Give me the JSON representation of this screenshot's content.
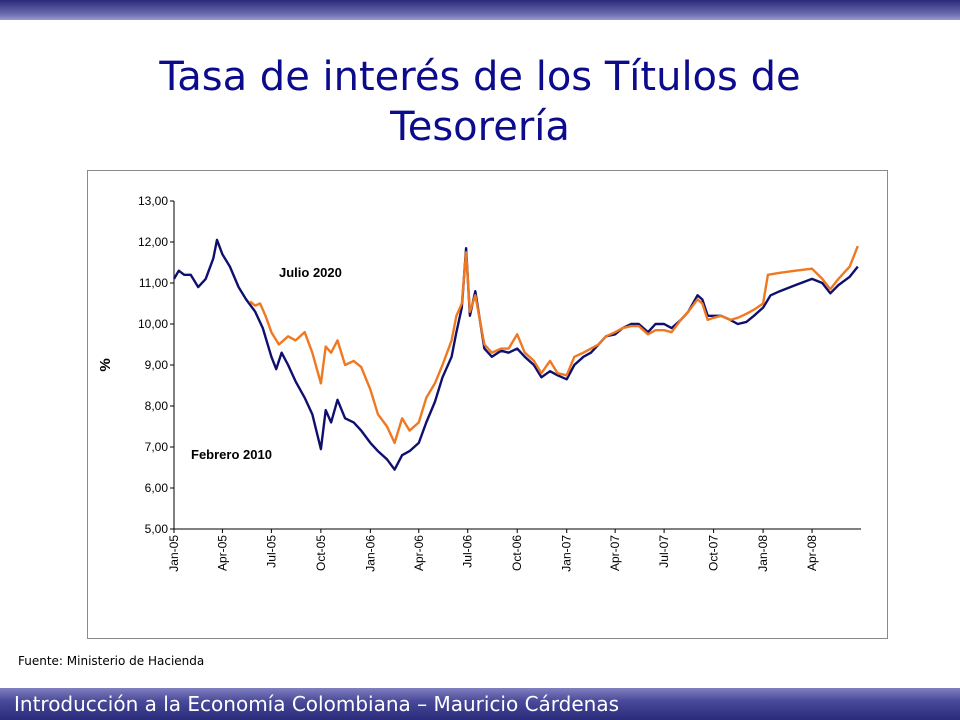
{
  "slide": {
    "title": "Tasa de interés de los Títulos de Tesorería",
    "source": "Fuente: Ministerio de Hacienda",
    "footer": "Introducción a la Economía Colombiana – Mauricio Cárdenas"
  },
  "colors": {
    "title": "#0b0b8c",
    "bars": "#2a2a7a"
  },
  "chart_data": {
    "type": "line",
    "title": "",
    "xlabel": "",
    "ylabel": "%",
    "ylim": [
      5.0,
      13.0
    ],
    "yticks": [
      "5,00",
      "6,00",
      "7,00",
      "8,00",
      "9,00",
      "10,00",
      "11,00",
      "12,00",
      "13,00"
    ],
    "xticks": [
      "Jan-05",
      "Apr-05",
      "Jul-05",
      "Oct-05",
      "Jan-06",
      "Apr-06",
      "Jul-06",
      "Oct-06",
      "Jan-07",
      "Apr-07",
      "Jul-07",
      "Oct-07",
      "Jan-08",
      "Apr-08"
    ],
    "grid": false,
    "annotations": [
      "Julio 2020",
      "Febrero 2010"
    ],
    "series": [
      {
        "name": "Febrero 2010",
        "color": "#0f0f6e",
        "points": [
          [
            "2005-01-01",
            11.1
          ],
          [
            "2005-01-10",
            11.3
          ],
          [
            "2005-01-20",
            11.2
          ],
          [
            "2005-02-01",
            11.2
          ],
          [
            "2005-02-15",
            10.9
          ],
          [
            "2005-03-01",
            11.1
          ],
          [
            "2005-03-15",
            11.6
          ],
          [
            "2005-03-22",
            12.05
          ],
          [
            "2005-04-01",
            11.7
          ],
          [
            "2005-04-15",
            11.4
          ],
          [
            "2005-05-01",
            10.9
          ],
          [
            "2005-05-15",
            10.6
          ],
          [
            "2005-06-01",
            10.3
          ],
          [
            "2005-06-15",
            9.9
          ],
          [
            "2005-07-01",
            9.2
          ],
          [
            "2005-07-10",
            8.9
          ],
          [
            "2005-07-20",
            9.3
          ],
          [
            "2005-08-01",
            9.0
          ],
          [
            "2005-08-15",
            8.6
          ],
          [
            "2005-09-01",
            8.2
          ],
          [
            "2005-09-15",
            7.8
          ],
          [
            "2005-10-01",
            6.95
          ],
          [
            "2005-10-10",
            7.9
          ],
          [
            "2005-10-20",
            7.6
          ],
          [
            "2005-11-01",
            8.15
          ],
          [
            "2005-11-15",
            7.7
          ],
          [
            "2005-12-01",
            7.6
          ],
          [
            "2005-12-15",
            7.4
          ],
          [
            "2006-01-01",
            7.1
          ],
          [
            "2006-01-15",
            6.9
          ],
          [
            "2006-02-01",
            6.7
          ],
          [
            "2006-02-15",
            6.45
          ],
          [
            "2006-03-01",
            6.8
          ],
          [
            "2006-03-15",
            6.9
          ],
          [
            "2006-04-01",
            7.1
          ],
          [
            "2006-04-15",
            7.6
          ],
          [
            "2006-05-01",
            8.1
          ],
          [
            "2006-05-15",
            8.7
          ],
          [
            "2006-06-01",
            9.2
          ],
          [
            "2006-06-10",
            9.8
          ],
          [
            "2006-06-20",
            10.4
          ],
          [
            "2006-06-28",
            11.85
          ],
          [
            "2006-07-05",
            10.2
          ],
          [
            "2006-07-15",
            10.8
          ],
          [
            "2006-08-01",
            9.4
          ],
          [
            "2006-08-15",
            9.2
          ],
          [
            "2006-09-01",
            9.35
          ],
          [
            "2006-09-15",
            9.3
          ],
          [
            "2006-10-01",
            9.4
          ],
          [
            "2006-10-15",
            9.2
          ],
          [
            "2006-11-01",
            9.0
          ],
          [
            "2006-11-15",
            8.7
          ],
          [
            "2006-12-01",
            8.85
          ],
          [
            "2006-12-15",
            8.75
          ],
          [
            "2007-01-01",
            8.65
          ],
          [
            "2007-01-15",
            9.0
          ],
          [
            "2007-02-01",
            9.2
          ],
          [
            "2007-02-15",
            9.3
          ],
          [
            "2007-03-01",
            9.5
          ],
          [
            "2007-03-15",
            9.7
          ],
          [
            "2007-04-01",
            9.75
          ],
          [
            "2007-04-15",
            9.9
          ],
          [
            "2007-05-01",
            10.0
          ],
          [
            "2007-05-15",
            10.0
          ],
          [
            "2007-06-01",
            9.8
          ],
          [
            "2007-06-15",
            10.0
          ],
          [
            "2007-07-01",
            10.0
          ],
          [
            "2007-07-15",
            9.9
          ],
          [
            "2007-08-01",
            10.1
          ],
          [
            "2007-08-15",
            10.3
          ],
          [
            "2007-09-01",
            10.7
          ],
          [
            "2007-09-10",
            10.6
          ],
          [
            "2007-09-20",
            10.2
          ],
          [
            "2007-10-01",
            10.2
          ],
          [
            "2007-10-15",
            10.2
          ],
          [
            "2007-11-01",
            10.1
          ],
          [
            "2007-11-15",
            10.0
          ],
          [
            "2007-12-01",
            10.05
          ],
          [
            "2007-12-15",
            10.2
          ],
          [
            "2008-01-01",
            10.4
          ],
          [
            "2008-01-15",
            10.7
          ],
          [
            "2008-02-01",
            10.8
          ],
          [
            "2008-03-01",
            10.95
          ],
          [
            "2008-04-01",
            11.1
          ],
          [
            "2008-04-20",
            11.0
          ],
          [
            "2008-05-05",
            10.75
          ],
          [
            "2008-05-20",
            10.95
          ],
          [
            "2008-06-10",
            11.15
          ],
          [
            "2008-06-25",
            11.4
          ]
        ]
      },
      {
        "name": "Julio 2020",
        "color": "#f07820",
        "points": [
          [
            "2005-05-22",
            10.55
          ],
          [
            "2005-06-01",
            10.45
          ],
          [
            "2005-06-10",
            10.5
          ],
          [
            "2005-06-20",
            10.2
          ],
          [
            "2005-07-01",
            9.8
          ],
          [
            "2005-07-15",
            9.5
          ],
          [
            "2005-08-01",
            9.7
          ],
          [
            "2005-08-15",
            9.6
          ],
          [
            "2005-09-01",
            9.8
          ],
          [
            "2005-09-15",
            9.3
          ],
          [
            "2005-10-01",
            8.55
          ],
          [
            "2005-10-10",
            9.45
          ],
          [
            "2005-10-20",
            9.3
          ],
          [
            "2005-11-01",
            9.6
          ],
          [
            "2005-11-15",
            9.0
          ],
          [
            "2005-12-01",
            9.1
          ],
          [
            "2005-12-15",
            8.95
          ],
          [
            "2006-01-01",
            8.4
          ],
          [
            "2006-01-15",
            7.8
          ],
          [
            "2006-02-01",
            7.5
          ],
          [
            "2006-02-15",
            7.1
          ],
          [
            "2006-03-01",
            7.7
          ],
          [
            "2006-03-15",
            7.4
          ],
          [
            "2006-04-01",
            7.6
          ],
          [
            "2006-04-15",
            8.2
          ],
          [
            "2006-05-01",
            8.55
          ],
          [
            "2006-05-15",
            9.0
          ],
          [
            "2006-06-01",
            9.6
          ],
          [
            "2006-06-10",
            10.2
          ],
          [
            "2006-06-20",
            10.5
          ],
          [
            "2006-06-28",
            11.75
          ],
          [
            "2006-07-05",
            10.3
          ],
          [
            "2006-07-15",
            10.7
          ],
          [
            "2006-08-01",
            9.5
          ],
          [
            "2006-08-15",
            9.3
          ],
          [
            "2006-09-01",
            9.4
          ],
          [
            "2006-09-15",
            9.4
          ],
          [
            "2006-10-01",
            9.75
          ],
          [
            "2006-10-15",
            9.3
          ],
          [
            "2006-11-01",
            9.1
          ],
          [
            "2006-11-15",
            8.8
          ],
          [
            "2006-12-01",
            9.1
          ],
          [
            "2006-12-15",
            8.8
          ],
          [
            "2007-01-01",
            8.75
          ],
          [
            "2007-01-15",
            9.2
          ],
          [
            "2007-02-01",
            9.3
          ],
          [
            "2007-02-15",
            9.4
          ],
          [
            "2007-03-01",
            9.5
          ],
          [
            "2007-03-15",
            9.7
          ],
          [
            "2007-04-01",
            9.8
          ],
          [
            "2007-04-15",
            9.9
          ],
          [
            "2007-05-01",
            9.95
          ],
          [
            "2007-05-15",
            9.95
          ],
          [
            "2007-06-01",
            9.75
          ],
          [
            "2007-06-15",
            9.85
          ],
          [
            "2007-07-01",
            9.85
          ],
          [
            "2007-07-15",
            9.8
          ],
          [
            "2007-08-01",
            10.1
          ],
          [
            "2007-08-15",
            10.3
          ],
          [
            "2007-09-01",
            10.6
          ],
          [
            "2007-09-10",
            10.5
          ],
          [
            "2007-09-20",
            10.1
          ],
          [
            "2007-10-01",
            10.15
          ],
          [
            "2007-10-15",
            10.2
          ],
          [
            "2007-11-01",
            10.1
          ],
          [
            "2007-11-15",
            10.15
          ],
          [
            "2007-12-01",
            10.25
          ],
          [
            "2007-12-15",
            10.35
          ],
          [
            "2008-01-01",
            10.5
          ],
          [
            "2008-01-10",
            11.2
          ],
          [
            "2008-02-01",
            11.25
          ],
          [
            "2008-03-01",
            11.3
          ],
          [
            "2008-04-01",
            11.35
          ],
          [
            "2008-04-20",
            11.1
          ],
          [
            "2008-05-05",
            10.85
          ],
          [
            "2008-05-20",
            11.1
          ],
          [
            "2008-06-10",
            11.4
          ],
          [
            "2008-06-25",
            11.9
          ]
        ]
      }
    ]
  }
}
